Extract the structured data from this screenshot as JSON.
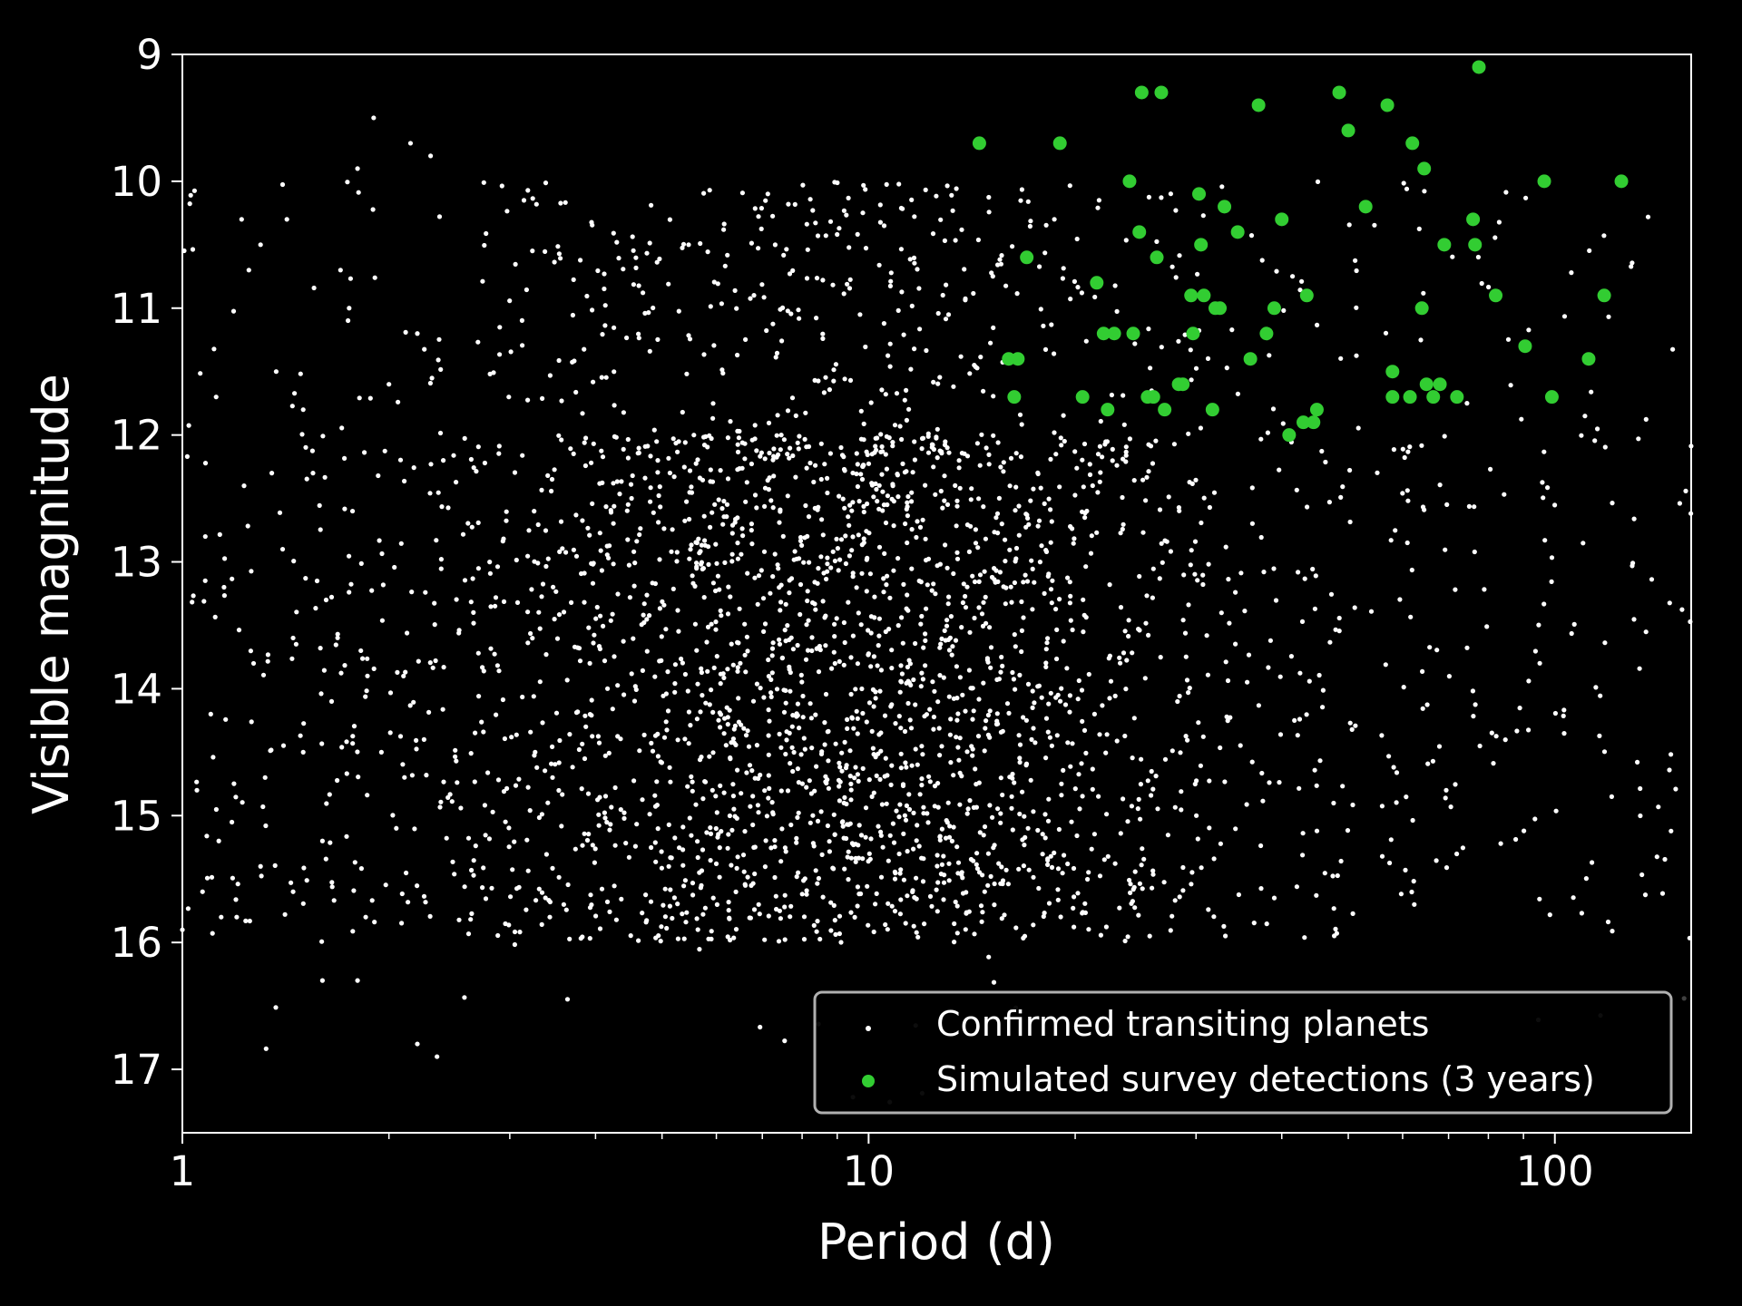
{
  "chart_data": {
    "type": "scatter",
    "title": "",
    "xlabel": "Period (d)",
    "ylabel": "Visible magnitude",
    "xscale": "log",
    "xlim": [
      1,
      158
    ],
    "ylim": [
      17.5,
      9
    ],
    "y_inverted": true,
    "xticks": [
      {
        "value": 1,
        "label": "1"
      },
      {
        "value": 10,
        "label": "10"
      },
      {
        "value": 100,
        "label": "100"
      }
    ],
    "yticks": [
      {
        "value": 9,
        "label": "9"
      },
      {
        "value": 10,
        "label": "10"
      },
      {
        "value": 11,
        "label": "11"
      },
      {
        "value": 12,
        "label": "12"
      },
      {
        "value": 13,
        "label": "13"
      },
      {
        "value": 14,
        "label": "14"
      },
      {
        "value": 15,
        "label": "15"
      },
      {
        "value": 16,
        "label": "16"
      },
      {
        "value": 17,
        "label": "17"
      }
    ],
    "grid": false,
    "legend_position": "lower-right",
    "background_color": "#000000",
    "series": [
      {
        "name": "Confirmed transiting planets",
        "color": "#ffffff",
        "marker": "small-dot",
        "points": [
          [
            1.0,
            15.9
          ],
          [
            1.05,
            14.8
          ],
          [
            1.07,
            15.6
          ],
          [
            1.08,
            12.8
          ],
          [
            1.1,
            14.2
          ],
          [
            1.12,
            11.7
          ],
          [
            1.13,
            15.2
          ],
          [
            1.15,
            13.2
          ],
          [
            1.2,
            15.8
          ],
          [
            1.22,
            10.3
          ],
          [
            1.23,
            12.4
          ],
          [
            1.25,
            10.7
          ],
          [
            1.27,
            13.8
          ],
          [
            1.3,
            10.5
          ],
          [
            1.32,
            14.7
          ],
          [
            1.35,
            12.3
          ],
          [
            1.37,
            11.5
          ],
          [
            1.4,
            12.9
          ],
          [
            1.42,
            10.3
          ],
          [
            1.45,
            13.6
          ],
          [
            1.5,
            11.8
          ],
          [
            1.5,
            14.5
          ],
          [
            1.55,
            12.3
          ],
          [
            1.6,
            15.2
          ],
          [
            1.62,
            13.3
          ],
          [
            1.65,
            14.1
          ],
          [
            1.7,
            10.7
          ],
          [
            1.75,
            11.0
          ],
          [
            1.77,
            12.6
          ],
          [
            1.8,
            9.9
          ],
          [
            1.82,
            13.7
          ],
          [
            1.85,
            15.8
          ],
          [
            1.9,
            9.5
          ],
          [
            1.95,
            14.5
          ],
          [
            2.0,
            11.6
          ],
          [
            2.05,
            15.1
          ],
          [
            2.1,
            13.9
          ],
          [
            2.15,
            9.7
          ],
          [
            2.2,
            11.2
          ],
          [
            2.25,
            14.4
          ],
          [
            1.3,
            15.4
          ],
          [
            1.45,
            15.6
          ],
          [
            1.6,
            16.3
          ],
          [
            1.8,
            16.3
          ],
          [
            2.2,
            16.8
          ],
          [
            2.35,
            16.9
          ],
          [
            2.3,
            9.8
          ],
          [
            2.4,
            12.2
          ]
        ]
      },
      {
        "name": "Simulated survey detections (3 years)",
        "color": "#32cd32",
        "marker": "dot",
        "points": [
          [
            14.5,
            9.7
          ],
          [
            16.0,
            11.4
          ],
          [
            16.3,
            11.7
          ],
          [
            16.5,
            11.4
          ],
          [
            17.0,
            10.6
          ],
          [
            19.0,
            9.7
          ],
          [
            20.5,
            11.7
          ],
          [
            21.5,
            10.8
          ],
          [
            22.0,
            11.2
          ],
          [
            22.3,
            11.8
          ],
          [
            22.8,
            11.2
          ],
          [
            24.0,
            10.0
          ],
          [
            24.3,
            11.2
          ],
          [
            24.8,
            10.4
          ],
          [
            25.0,
            9.3
          ],
          [
            25.5,
            11.7
          ],
          [
            26.0,
            11.7
          ],
          [
            26.3,
            10.6
          ],
          [
            26.7,
            9.3
          ],
          [
            27.0,
            11.8
          ],
          [
            28.3,
            11.6
          ],
          [
            28.7,
            11.6
          ],
          [
            29.5,
            10.9
          ],
          [
            29.7,
            11.2
          ],
          [
            30.3,
            10.1
          ],
          [
            30.5,
            10.5
          ],
          [
            30.8,
            10.9
          ],
          [
            31.7,
            11.8
          ],
          [
            32.0,
            11.0
          ],
          [
            32.5,
            11.0
          ],
          [
            33.0,
            10.2
          ],
          [
            34.5,
            10.4
          ],
          [
            36.0,
            11.4
          ],
          [
            37.0,
            9.4
          ],
          [
            38.0,
            11.2
          ],
          [
            39.0,
            11.0
          ],
          [
            40.0,
            10.3
          ],
          [
            41.0,
            12.0
          ],
          [
            43.0,
            11.9
          ],
          [
            43.5,
            10.9
          ],
          [
            44.5,
            11.9
          ],
          [
            45.0,
            11.8
          ],
          [
            48.5,
            9.3
          ],
          [
            50.0,
            9.6
          ],
          [
            53.0,
            10.2
          ],
          [
            57.0,
            9.4
          ],
          [
            58.0,
            11.5
          ],
          [
            58.0,
            11.7
          ],
          [
            61.5,
            11.7
          ],
          [
            62.0,
            9.7
          ],
          [
            64.0,
            11.0
          ],
          [
            64.5,
            9.9
          ],
          [
            65.0,
            11.6
          ],
          [
            66.5,
            11.7
          ],
          [
            68.0,
            11.6
          ],
          [
            69.0,
            10.5
          ],
          [
            72.0,
            11.7
          ],
          [
            76.0,
            10.3
          ],
          [
            76.5,
            10.5
          ],
          [
            77.5,
            9.1
          ],
          [
            82.0,
            10.9
          ],
          [
            90.5,
            11.3
          ],
          [
            96.5,
            10.0
          ],
          [
            99.0,
            11.7
          ],
          [
            112.0,
            11.4
          ],
          [
            118.0,
            10.9
          ],
          [
            125.0,
            10.0
          ]
        ]
      }
    ]
  },
  "legend": {
    "items": [
      {
        "label": "Confirmed transiting planets",
        "color": "#ffffff"
      },
      {
        "label": "Simulated survey detections (3 years)",
        "color": "#32cd32"
      }
    ]
  }
}
